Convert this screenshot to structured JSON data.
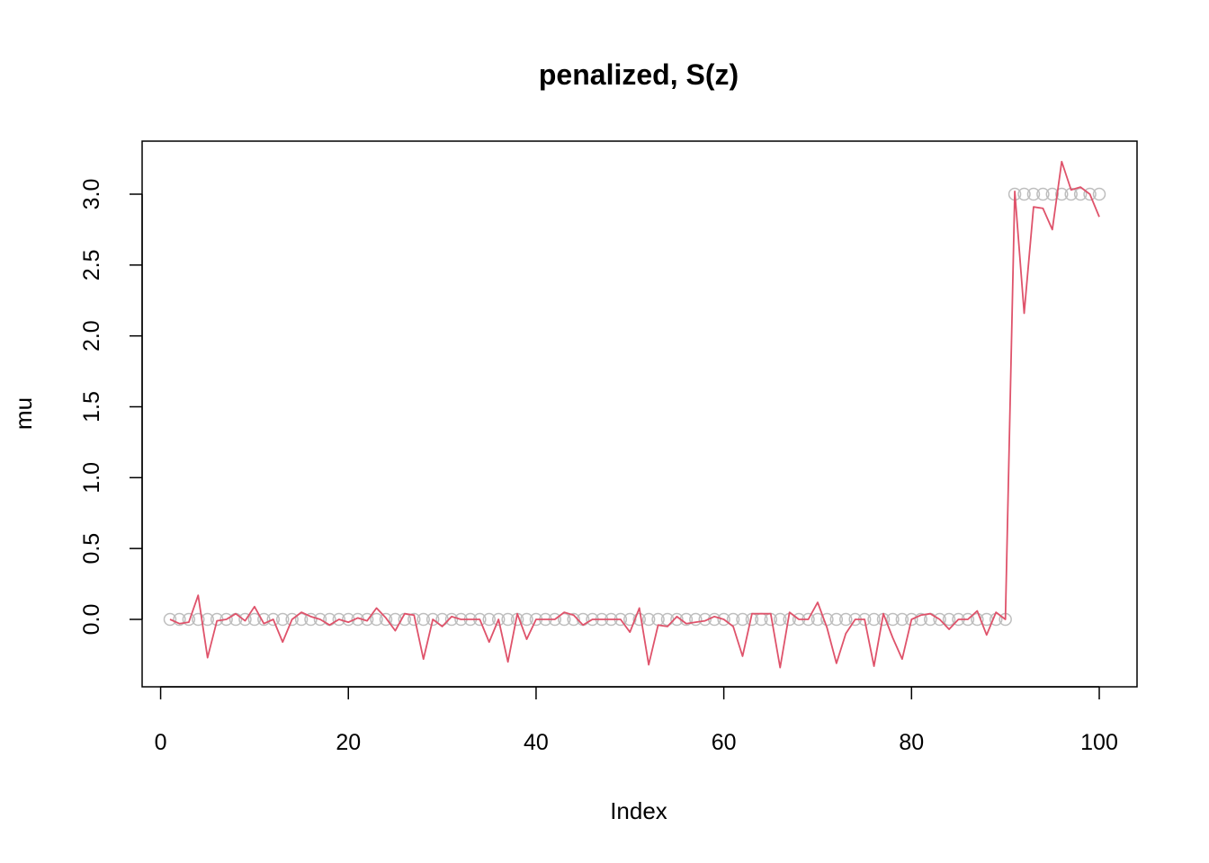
{
  "chart_data": {
    "type": "scatter",
    "title": "penalized, S(z)",
    "xlabel": "Index",
    "ylabel": "mu",
    "xlim": [
      1,
      100
    ],
    "ylim": [
      -0.33,
      3.23
    ],
    "x_ticks": [
      "0",
      "20",
      "40",
      "60",
      "80",
      "100"
    ],
    "y_ticks": [
      "0.0",
      "0.5",
      "1.0",
      "1.5",
      "2.0",
      "2.5",
      "3.0"
    ],
    "grid": false,
    "legend": "none",
    "series": [
      {
        "kind": "points",
        "color": "#BEBEBE",
        "y": [
          0,
          0,
          0,
          0,
          0,
          0,
          0,
          0,
          0,
          0,
          0,
          0,
          0,
          0,
          0,
          0,
          0,
          0,
          0,
          0,
          0,
          0,
          0,
          0,
          0,
          0,
          0,
          0,
          0,
          0,
          0,
          0,
          0,
          0,
          0,
          0,
          0,
          0,
          0,
          0,
          0,
          0,
          0,
          0,
          0,
          0,
          0,
          0,
          0,
          0,
          0,
          0,
          0,
          0,
          0,
          0,
          0,
          0,
          0,
          0,
          0,
          0,
          0,
          0,
          0,
          0,
          0,
          0,
          0,
          0,
          0,
          0,
          0,
          0,
          0,
          0,
          0,
          0,
          0,
          0,
          0,
          0,
          0,
          0,
          0,
          0,
          0,
          0,
          0,
          0,
          3,
          3,
          3,
          3,
          3,
          3,
          3,
          3,
          3,
          3
        ]
      },
      {
        "kind": "line",
        "color": "#DF536B",
        "y": [
          0.0,
          -0.03,
          -0.02,
          0.17,
          -0.27,
          -0.01,
          0.0,
          0.04,
          -0.01,
          0.09,
          -0.03,
          0.0,
          -0.16,
          0.0,
          0.05,
          0.02,
          0.0,
          -0.04,
          0.0,
          -0.02,
          0.01,
          -0.01,
          0.08,
          0.01,
          -0.08,
          0.04,
          0.03,
          -0.28,
          0.0,
          -0.05,
          0.02,
          0.0,
          0.0,
          0.0,
          -0.16,
          0.0,
          -0.3,
          0.04,
          -0.14,
          0.0,
          0.0,
          0.0,
          0.05,
          0.03,
          -0.04,
          0.0,
          0.0,
          0.0,
          0.0,
          -0.09,
          0.08,
          -0.32,
          -0.04,
          -0.05,
          0.02,
          -0.03,
          -0.02,
          -0.01,
          0.02,
          0.0,
          -0.05,
          -0.26,
          0.04,
          0.04,
          0.04,
          -0.34,
          0.05,
          0.0,
          0.0,
          0.12,
          -0.06,
          -0.31,
          -0.1,
          0.0,
          0.0,
          -0.33,
          0.04,
          -0.13,
          -0.28,
          0.0,
          0.03,
          0.04,
          0.0,
          -0.07,
          0.0,
          0.0,
          0.06,
          -0.11,
          0.05,
          0.0,
          3.02,
          2.16,
          2.91,
          2.9,
          2.75,
          3.23,
          3.03,
          3.05,
          3.0,
          2.84
        ]
      }
    ]
  },
  "colors": {
    "points": "#BEBEBE",
    "line": "#DF536B",
    "axes": "#000000"
  }
}
